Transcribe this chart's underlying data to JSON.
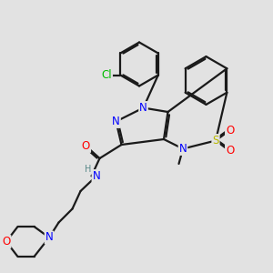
{
  "bg_color": "#e2e2e2",
  "bond_color": "#1a1a1a",
  "bond_width": 1.6,
  "atom_colors": {
    "N": "#0000ff",
    "O": "#ff0000",
    "S": "#b8b800",
    "Cl": "#00bb00",
    "H": "#5a8a8a"
  },
  "font_size": 8.5
}
